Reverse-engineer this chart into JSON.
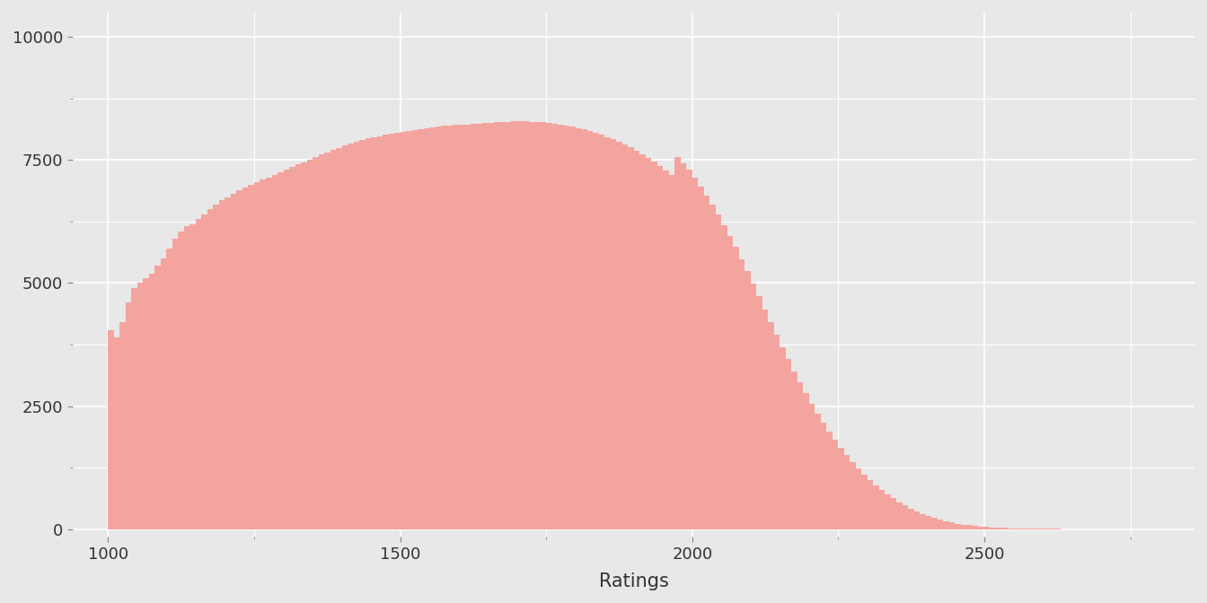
{
  "title": "",
  "xlabel": "Ratings",
  "ylabel": "",
  "bar_color": "#F4A49E",
  "bar_edge_color": "#F4A49E",
  "background_color": "#E8E8E8",
  "grid_color": "#FFFFFF",
  "x_min": 940,
  "x_max": 2860,
  "y_min": -150,
  "y_max": 10500,
  "x_ticks": [
    1000,
    1500,
    2000,
    2500
  ],
  "y_ticks": [
    0,
    2500,
    5000,
    7500,
    10000
  ],
  "bin_width": 10,
  "rating_start": 1000,
  "histogram_bins": [
    4050,
    3900,
    4200,
    4600,
    4900,
    5000,
    5100,
    5200,
    5350,
    5500,
    5700,
    5900,
    6050,
    6150,
    6200,
    6300,
    6400,
    6500,
    6600,
    6680,
    6750,
    6820,
    6880,
    6940,
    7000,
    7060,
    7110,
    7150,
    7200,
    7250,
    7300,
    7360,
    7410,
    7460,
    7510,
    7560,
    7610,
    7660,
    7700,
    7750,
    7800,
    7840,
    7880,
    7910,
    7940,
    7970,
    7990,
    8010,
    8030,
    8050,
    8070,
    8090,
    8110,
    8130,
    8150,
    8170,
    8185,
    8195,
    8205,
    8210,
    8215,
    8220,
    8230,
    8240,
    8250,
    8260,
    8270,
    8275,
    8280,
    8285,
    8285,
    8285,
    8280,
    8275,
    8265,
    8255,
    8240,
    8220,
    8200,
    8175,
    8150,
    8120,
    8085,
    8050,
    8010,
    7965,
    7920,
    7870,
    7815,
    7755,
    7690,
    7620,
    7545,
    7465,
    7380,
    7290,
    7196,
    7560,
    7440,
    7300,
    7140,
    6960,
    6780,
    6590,
    6390,
    6180,
    5960,
    5730,
    5490,
    5240,
    4990,
    4730,
    4470,
    4210,
    3950,
    3700,
    3450,
    3210,
    2980,
    2760,
    2550,
    2350,
    2160,
    1980,
    1810,
    1650,
    1500,
    1360,
    1230,
    1110,
    1000,
    895,
    800,
    710,
    625,
    548,
    478,
    415,
    358,
    307,
    263,
    224,
    190,
    160,
    134,
    112,
    93,
    77,
    64,
    52,
    43,
    35,
    29,
    23,
    18,
    14,
    11,
    9,
    7,
    5,
    4,
    3,
    3,
    2,
    2,
    1,
    1,
    1,
    1,
    0,
    0,
    0,
    0,
    0,
    0,
    0,
    0,
    0,
    0,
    0
  ]
}
